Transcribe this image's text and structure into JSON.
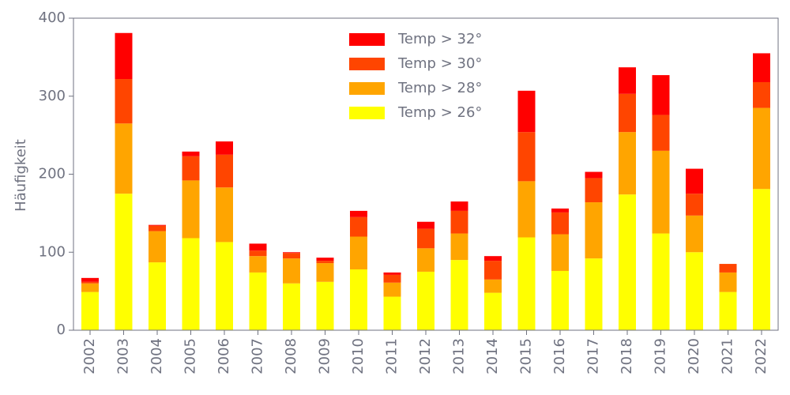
{
  "chart_data": {
    "type": "bar",
    "stacked": true,
    "title": "",
    "xlabel": "",
    "ylabel": "Häufigkeit",
    "ylim": [
      0,
      400
    ],
    "y_ticks": [
      "0",
      "100",
      "200",
      "300",
      "400"
    ],
    "grid": false,
    "legend_position": "top-center",
    "categories": [
      "2002",
      "2003",
      "2004",
      "2005",
      "2006",
      "2007",
      "2008",
      "2009",
      "2010",
      "2011",
      "2012",
      "2013",
      "2014",
      "2015",
      "2016",
      "2017",
      "2018",
      "2019",
      "2020",
      "2021",
      "2022"
    ],
    "series": [
      {
        "name": "Temp > 26°",
        "color": "#ffff00",
        "values": [
          49,
          175,
          87,
          118,
          113,
          74,
          60,
          62,
          78,
          43,
          75,
          90,
          48,
          119,
          76,
          92,
          174,
          124,
          100,
          49,
          181
        ]
      },
      {
        "name": "Temp > 28°",
        "color": "#ffa500",
        "values": [
          11,
          90,
          40,
          74,
          70,
          21,
          32,
          24,
          42,
          18,
          30,
          34,
          17,
          72,
          47,
          72,
          80,
          106,
          47,
          25,
          104
        ]
      },
      {
        "name": "Temp > 30°",
        "color": "#ff4500",
        "values": [
          2,
          57,
          7,
          31,
          42,
          7,
          7,
          3,
          25,
          10,
          25,
          29,
          24,
          63,
          28,
          31,
          49,
          46,
          28,
          11,
          33
        ]
      },
      {
        "name": "Temp > 32°",
        "color": "#ff0000",
        "values": [
          5,
          59,
          1,
          6,
          17,
          9,
          1,
          4,
          8,
          3,
          9,
          12,
          6,
          53,
          5,
          8,
          34,
          51,
          32,
          0,
          37
        ]
      }
    ],
    "legend_order": [
      "Temp > 32°",
      "Temp > 30°",
      "Temp > 28°",
      "Temp > 26°"
    ],
    "axis_color": "#6f7280"
  }
}
